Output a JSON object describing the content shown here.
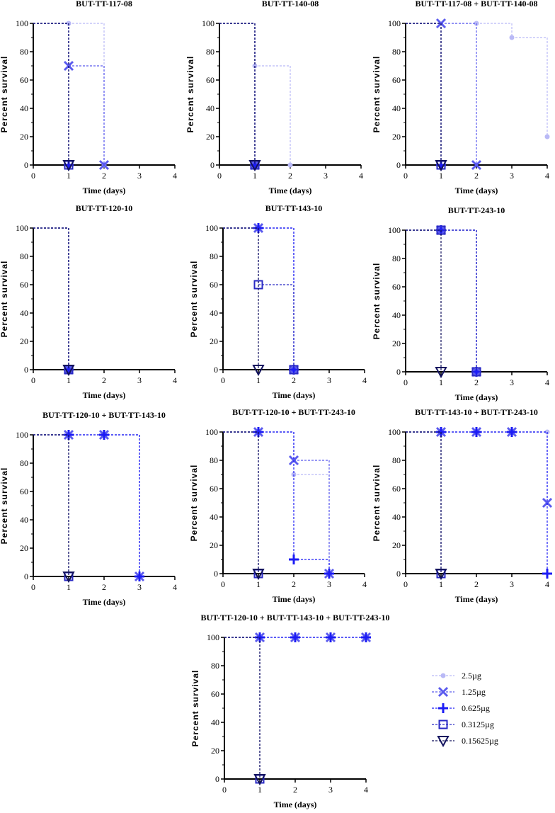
{
  "chart_data": {
    "type": "line",
    "subtype": "kaplan-meier survival (step)",
    "xlabel": "Time (days)",
    "ylabel": "Percent survival",
    "xlim": [
      0,
      4
    ],
    "ylim": [
      0,
      100
    ],
    "xticks": [
      "0",
      "1",
      "2",
      "3",
      "4"
    ],
    "yticks": [
      "0",
      "20",
      "40",
      "60",
      "80",
      "100"
    ],
    "legend": {
      "placement": "bottom-right",
      "series": [
        {
          "name": "2.5µg",
          "color": "#b9b9f6",
          "marker": "circle"
        },
        {
          "name": "1.25µg",
          "color": "#5a5aee",
          "marker": "x"
        },
        {
          "name": "0.625µg",
          "color": "#1c1cf5",
          "marker": "plus"
        },
        {
          "name": "0.3125µg",
          "color": "#2a2ac4",
          "marker": "square"
        },
        {
          "name": "0.15625µg",
          "color": "#12125e",
          "marker": "triangle-down"
        }
      ]
    },
    "panels": [
      {
        "title": "BUT-TT-117-08",
        "series": [
          [
            [
              0,
              100
            ],
            [
              1,
              100
            ],
            [
              2,
              0
            ]
          ],
          [
            [
              0,
              100
            ],
            [
              1,
              70
            ],
            [
              2,
              0
            ]
          ],
          [
            [
              0,
              100
            ],
            [
              1,
              0
            ]
          ],
          [
            [
              0,
              100
            ],
            [
              1,
              0
            ]
          ],
          [
            [
              0,
              100
            ],
            [
              1,
              0
            ]
          ]
        ]
      },
      {
        "title": "BUT-TT-140-08",
        "series": [
          [
            [
              0,
              100
            ],
            [
              1,
              70
            ],
            [
              2,
              0
            ]
          ],
          [
            [
              0,
              100
            ],
            [
              1,
              0
            ]
          ],
          [
            [
              0,
              100
            ],
            [
              1,
              0
            ]
          ],
          [
            [
              0,
              100
            ],
            [
              1,
              0
            ]
          ],
          [
            [
              0,
              100
            ],
            [
              1,
              0
            ]
          ]
        ]
      },
      {
        "title": "BUT-TT-117-08 + BUT-TT-140-08",
        "series": [
          [
            [
              0,
              100
            ],
            [
              2,
              100
            ],
            [
              3,
              90
            ],
            [
              4,
              20
            ]
          ],
          [
            [
              0,
              100
            ],
            [
              1,
              100
            ],
            [
              2,
              0
            ]
          ],
          [
            [
              0,
              100
            ],
            [
              1,
              0
            ]
          ],
          [
            [
              0,
              100
            ],
            [
              1,
              0
            ]
          ],
          [
            [
              0,
              100
            ],
            [
              1,
              0
            ]
          ]
        ]
      },
      {
        "title": "BUT-TT-120-10",
        "series": [
          [
            [
              0,
              100
            ],
            [
              1,
              0
            ]
          ],
          [
            [
              0,
              100
            ],
            [
              1,
              0
            ]
          ],
          [
            [
              0,
              100
            ],
            [
              1,
              0
            ]
          ],
          [
            [
              0,
              100
            ],
            [
              1,
              0
            ]
          ],
          [
            [
              0,
              100
            ],
            [
              1,
              0
            ]
          ]
        ]
      },
      {
        "title": "BUT-TT-143-10",
        "series": [
          [
            [
              0,
              100
            ],
            [
              1,
              100
            ],
            [
              2,
              0
            ]
          ],
          [
            [
              0,
              100
            ],
            [
              1,
              100
            ],
            [
              2,
              0
            ]
          ],
          [
            [
              0,
              100
            ],
            [
              1,
              100
            ],
            [
              2,
              0
            ]
          ],
          [
            [
              0,
              100
            ],
            [
              1,
              60
            ],
            [
              2,
              0
            ]
          ],
          [
            [
              0,
              100
            ],
            [
              1,
              0
            ]
          ]
        ]
      },
      {
        "title": "BUT-TT-243-10",
        "series": [
          [
            [
              0,
              100
            ],
            [
              1,
              100
            ],
            [
              2,
              0
            ]
          ],
          [
            [
              0,
              100
            ],
            [
              1,
              100
            ],
            [
              2,
              0
            ]
          ],
          [
            [
              0,
              100
            ],
            [
              1,
              100
            ],
            [
              2,
              0
            ]
          ],
          [
            [
              0,
              100
            ],
            [
              1,
              100
            ],
            [
              2,
              0
            ]
          ],
          [
            [
              0,
              100
            ],
            [
              1,
              0
            ]
          ]
        ]
      },
      {
        "title": "BUT-TT-120-10 + BUT-TT-143-10",
        "series": [
          [
            [
              0,
              100
            ],
            [
              1,
              100
            ],
            [
              2,
              100
            ],
            [
              3,
              0
            ]
          ],
          [
            [
              0,
              100
            ],
            [
              1,
              100
            ],
            [
              2,
              100
            ],
            [
              3,
              0
            ]
          ],
          [
            [
              0,
              100
            ],
            [
              1,
              100
            ],
            [
              2,
              100
            ],
            [
              3,
              0
            ]
          ],
          [
            [
              0,
              100
            ],
            [
              1,
              0
            ]
          ],
          [
            [
              0,
              100
            ],
            [
              1,
              0
            ]
          ]
        ]
      },
      {
        "title": "BUT-TT-120-10 + BUT-TT-243-10",
        "series": [
          [
            [
              0,
              100
            ],
            [
              1,
              100
            ],
            [
              2,
              70
            ],
            [
              3,
              0
            ]
          ],
          [
            [
              0,
              100
            ],
            [
              1,
              100
            ],
            [
              2,
              80
            ],
            [
              3,
              0
            ]
          ],
          [
            [
              0,
              100
            ],
            [
              1,
              100
            ],
            [
              2,
              10
            ],
            [
              3,
              0
            ]
          ],
          [
            [
              0,
              100
            ],
            [
              1,
              0
            ]
          ],
          [
            [
              0,
              100
            ],
            [
              1,
              0
            ]
          ]
        ]
      },
      {
        "title": "BUT-TT-143-10 + BUT-TT-243-10",
        "series": [
          [
            [
              0,
              100
            ],
            [
              1,
              100
            ],
            [
              2,
              100
            ],
            [
              3,
              100
            ],
            [
              4,
              100
            ]
          ],
          [
            [
              0,
              100
            ],
            [
              1,
              100
            ],
            [
              2,
              100
            ],
            [
              3,
              100
            ],
            [
              4,
              50
            ]
          ],
          [
            [
              0,
              100
            ],
            [
              1,
              100
            ],
            [
              2,
              100
            ],
            [
              3,
              100
            ],
            [
              4,
              0
            ]
          ],
          [
            [
              0,
              100
            ],
            [
              1,
              0
            ]
          ],
          [
            [
              0,
              100
            ],
            [
              1,
              0
            ]
          ]
        ]
      },
      {
        "title": "BUT-TT-120-10 + BUT-TT-143-10 + BUT-TT-243-10",
        "series": [
          [
            [
              0,
              100
            ],
            [
              1,
              100
            ],
            [
              2,
              100
            ],
            [
              3,
              100
            ],
            [
              4,
              100
            ]
          ],
          [
            [
              0,
              100
            ],
            [
              1,
              100
            ],
            [
              2,
              100
            ],
            [
              3,
              100
            ],
            [
              4,
              100
            ]
          ],
          [
            [
              0,
              100
            ],
            [
              1,
              100
            ],
            [
              2,
              100
            ],
            [
              3,
              100
            ],
            [
              4,
              100
            ]
          ],
          [
            [
              0,
              100
            ],
            [
              1,
              0
            ]
          ],
          [
            [
              0,
              100
            ],
            [
              1,
              0
            ]
          ]
        ]
      }
    ]
  }
}
